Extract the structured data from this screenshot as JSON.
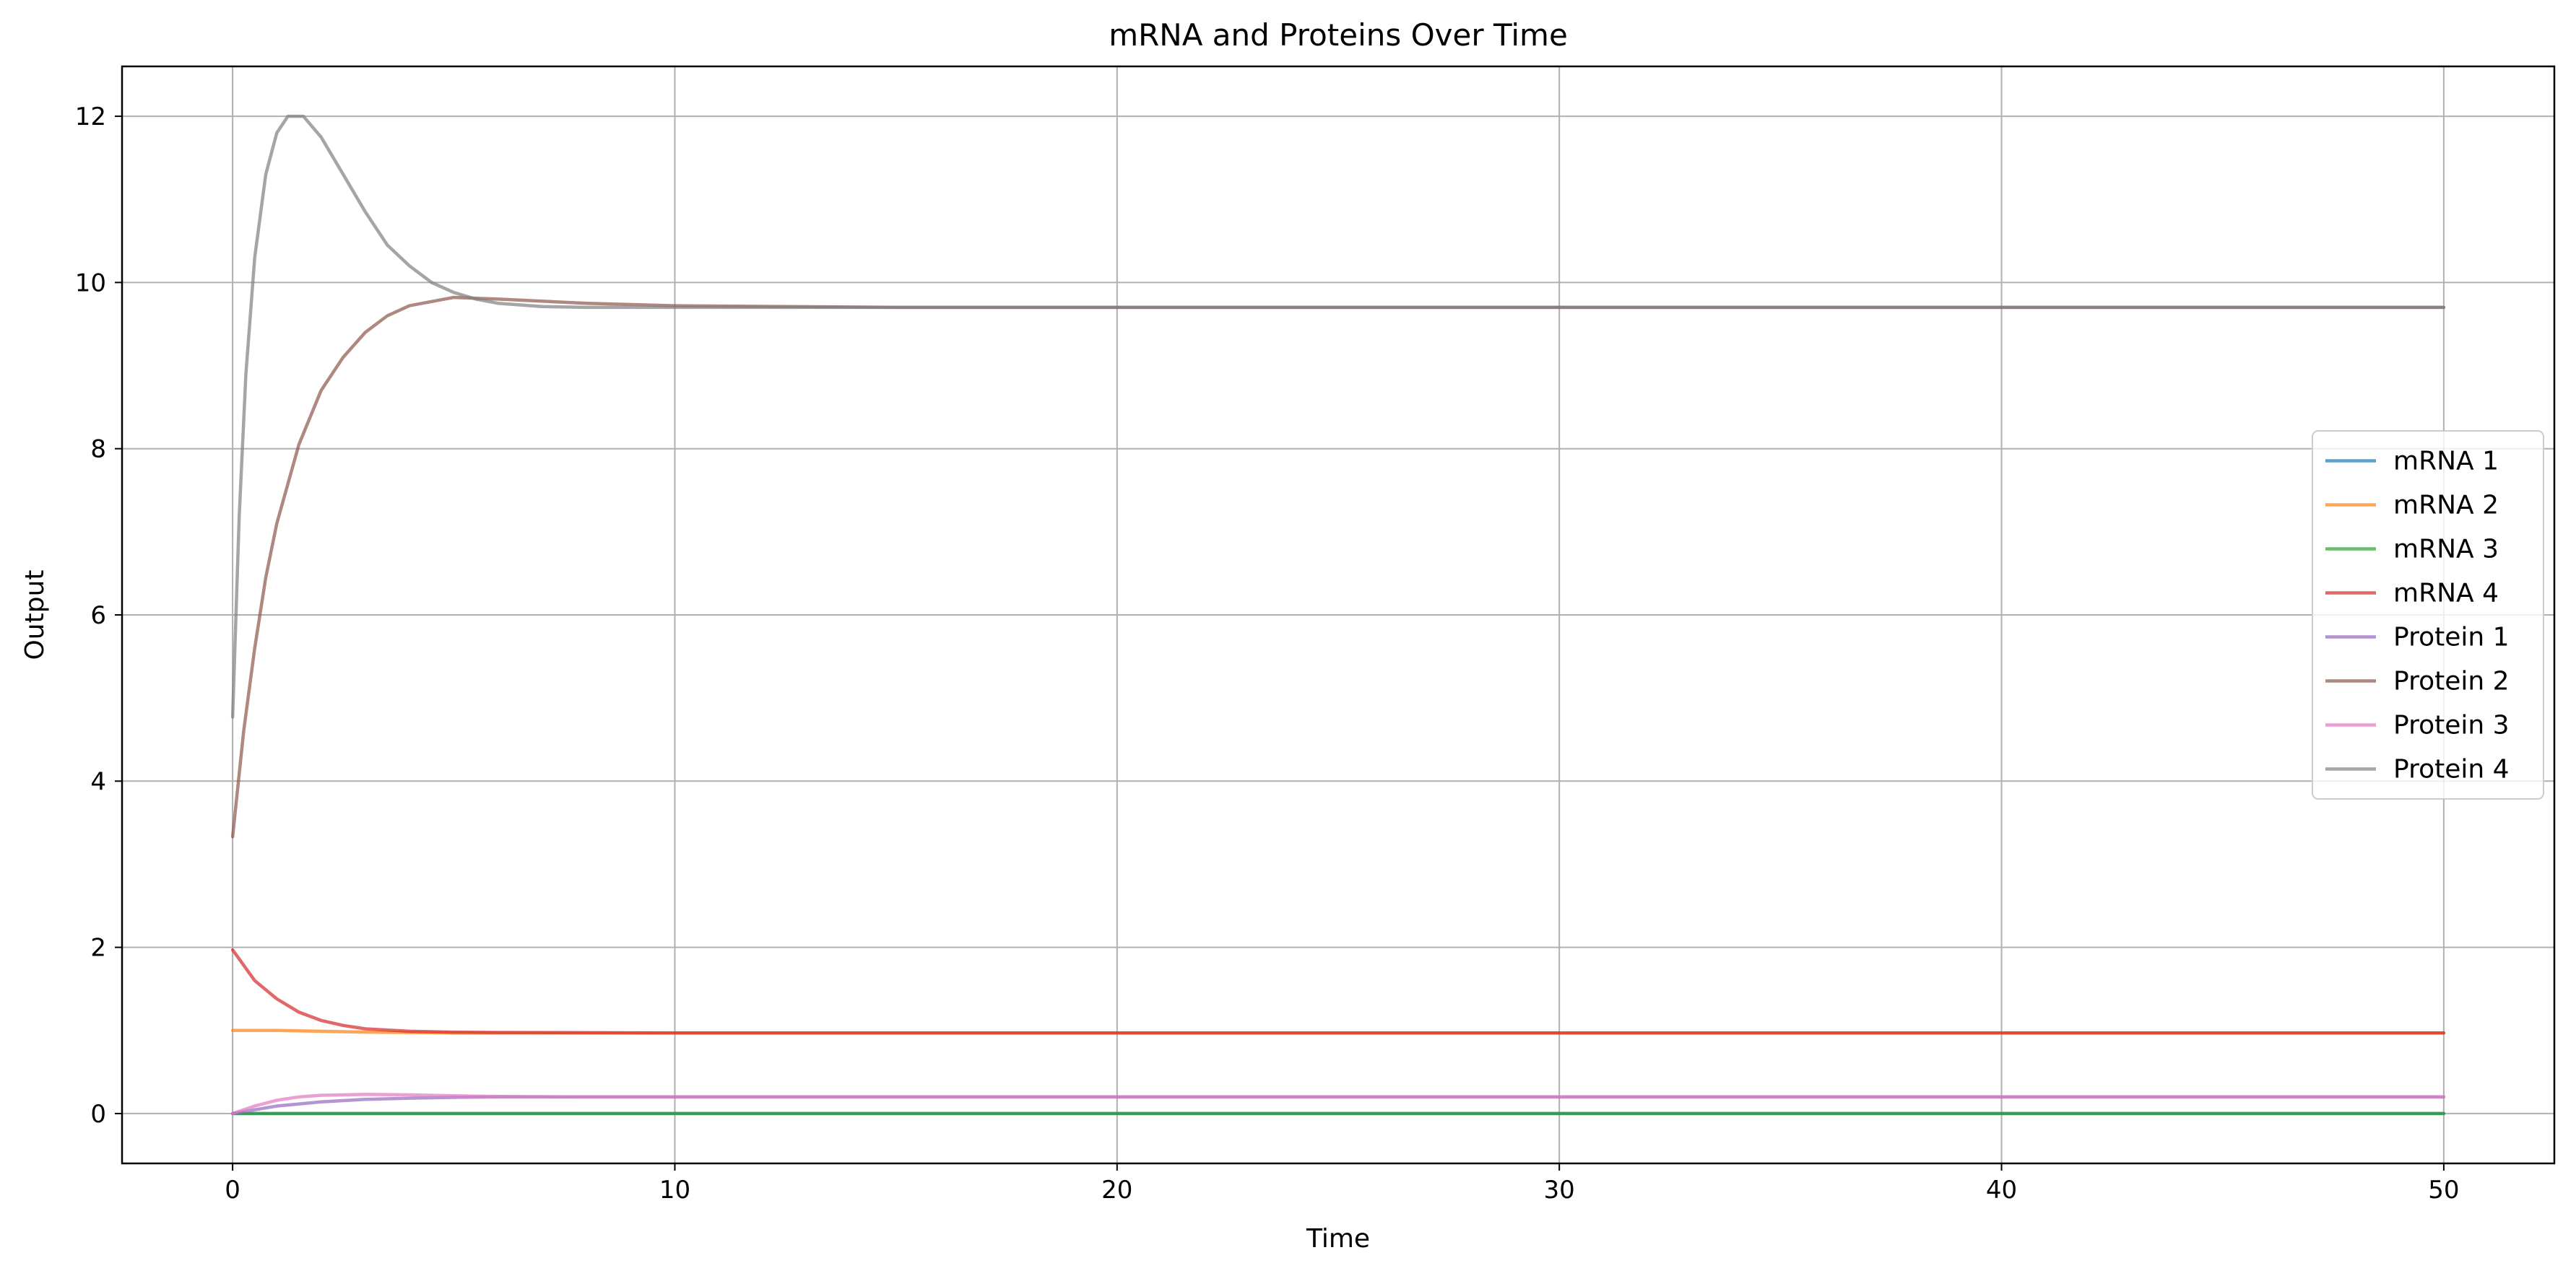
{
  "chart_data": {
    "type": "line",
    "title": "mRNA and Proteins Over Time",
    "xlabel": "Time",
    "ylabel": "Output",
    "xlim": [
      -2.5,
      52.5
    ],
    "ylim": [
      -0.6,
      12.6
    ],
    "xticks": [
      0,
      10,
      20,
      30,
      40,
      50
    ],
    "yticks": [
      0,
      2,
      4,
      6,
      8,
      10,
      12
    ],
    "grid": true,
    "legend_position": "center-right",
    "series": [
      {
        "name": "mRNA 1",
        "color": "#1f77b4",
        "x": [
          0,
          50
        ],
        "y": [
          0.0,
          0.0
        ]
      },
      {
        "name": "mRNA 2",
        "color": "#ff7f0e",
        "x": [
          0,
          1,
          2,
          3,
          4,
          5,
          10,
          20,
          30,
          40,
          50
        ],
        "y": [
          1.0,
          1.0,
          0.99,
          0.98,
          0.975,
          0.97,
          0.97,
          0.97,
          0.97,
          0.97,
          0.97
        ]
      },
      {
        "name": "mRNA 3",
        "color": "#2ca02c",
        "x": [
          0,
          50
        ],
        "y": [
          0.0,
          0.0
        ]
      },
      {
        "name": "mRNA 4",
        "color": "#d62728",
        "x": [
          0,
          0.5,
          1,
          1.5,
          2,
          2.5,
          3,
          4,
          5,
          6,
          10,
          20,
          30,
          40,
          50
        ],
        "y": [
          1.97,
          1.6,
          1.38,
          1.22,
          1.12,
          1.06,
          1.02,
          0.99,
          0.98,
          0.975,
          0.97,
          0.97,
          0.97,
          0.97,
          0.97
        ]
      },
      {
        "name": "Protein 1",
        "color": "#9467bd",
        "x": [
          0,
          1,
          2,
          3,
          4,
          5,
          6,
          8,
          10,
          20,
          30,
          40,
          50
        ],
        "y": [
          0.0,
          0.09,
          0.14,
          0.17,
          0.185,
          0.195,
          0.2,
          0.2,
          0.2,
          0.2,
          0.2,
          0.2,
          0.2
        ]
      },
      {
        "name": "Protein 2",
        "color": "#8c564b",
        "x": [
          0,
          0.25,
          0.5,
          0.75,
          1,
          1.5,
          2,
          2.5,
          3,
          3.5,
          4,
          5,
          6,
          8,
          10,
          15,
          20,
          30,
          40,
          50
        ],
        "y": [
          3.33,
          4.6,
          5.6,
          6.45,
          7.1,
          8.05,
          8.7,
          9.1,
          9.4,
          9.6,
          9.72,
          9.82,
          9.8,
          9.75,
          9.72,
          9.7,
          9.7,
          9.7,
          9.7,
          9.7
        ]
      },
      {
        "name": "Protein 3",
        "color": "#e377c2",
        "x": [
          0,
          0.5,
          1,
          1.5,
          2,
          3,
          4,
          5,
          6,
          8,
          10,
          20,
          30,
          40,
          50
        ],
        "y": [
          0.0,
          0.09,
          0.16,
          0.2,
          0.22,
          0.23,
          0.225,
          0.215,
          0.205,
          0.2,
          0.2,
          0.2,
          0.2,
          0.2,
          0.2
        ]
      },
      {
        "name": "Protein 4",
        "color": "#7f7f7f",
        "x": [
          0,
          0.15,
          0.3,
          0.5,
          0.75,
          1,
          1.25,
          1.6,
          2,
          2.5,
          3,
          3.5,
          4,
          4.5,
          5,
          5.5,
          6,
          7,
          8,
          10,
          15,
          20,
          30,
          40,
          50
        ],
        "y": [
          4.77,
          7.2,
          8.9,
          10.3,
          11.3,
          11.8,
          12.0,
          12.0,
          11.75,
          11.3,
          10.85,
          10.45,
          10.2,
          10.0,
          9.88,
          9.8,
          9.75,
          9.71,
          9.7,
          9.7,
          9.7,
          9.7,
          9.7,
          9.7,
          9.7
        ]
      }
    ]
  }
}
